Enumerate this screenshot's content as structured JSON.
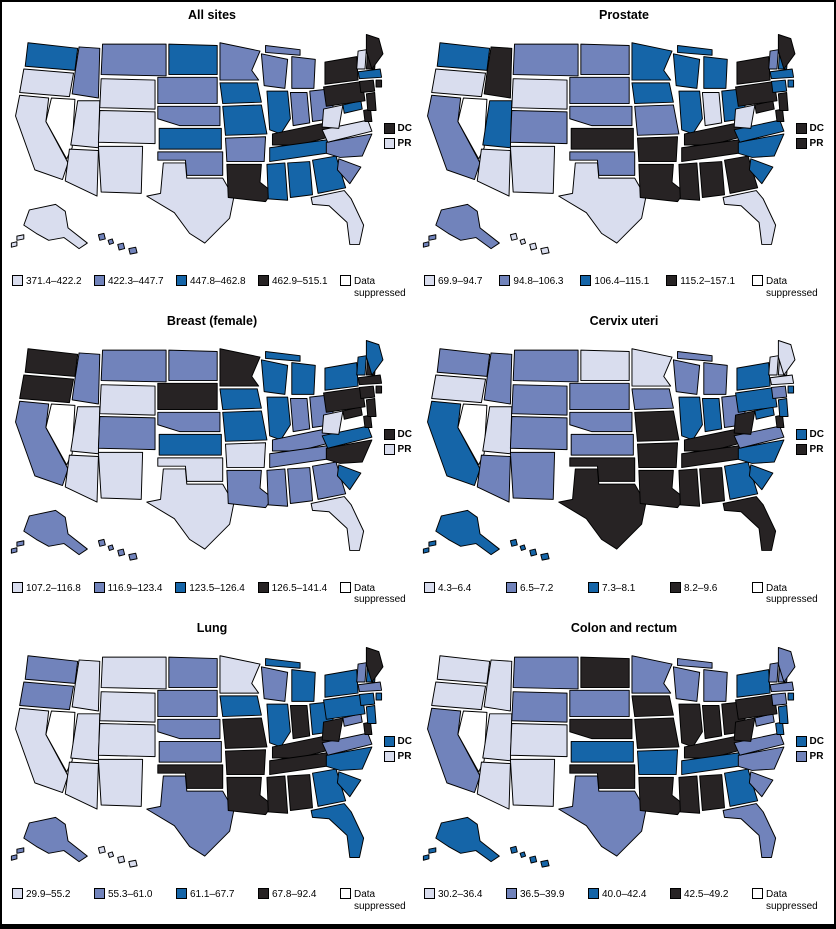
{
  "labels": {
    "dc": "DC",
    "pr": "PR"
  },
  "colors": {
    "1": "#d9ddee",
    "2": "#7183bb",
    "3": "#1565a8",
    "4": "#272324",
    "S": "#ffffff",
    "border": "#000000"
  },
  "chart_data": {
    "type": "choropleth",
    "geography": "US states with DC and PR indicators",
    "category_meaning": [
      "1=lowest rate quartile",
      "2=second quartile",
      "3=third quartile",
      "4=highest quartile",
      "S=data suppressed"
    ],
    "panels": [
      {
        "title": "All sites",
        "bins": [
          "371.4–422.2",
          "422.3–447.7",
          "447.8–462.8",
          "462.9–515.1",
          "Data suppressed"
        ],
        "dc": "4",
        "pr": "1",
        "states": {
          "WA": "3",
          "OR": "1",
          "CA": "1",
          "NV": "S",
          "ID": "2",
          "MT": "2",
          "WY": "1",
          "UT": "1",
          "CO": "1",
          "AZ": "1",
          "NM": "1",
          "AK": "1",
          "HI": "2",
          "ND": "3",
          "SD": "2",
          "NE": "2",
          "KS": "3",
          "OK": "2",
          "TX": "1",
          "MN": "2",
          "IA": "3",
          "MO": "3",
          "AR": "2",
          "LA": "4",
          "WI": "2",
          "IL": "3",
          "MI": "2",
          "IN": "2",
          "OH": "2",
          "KY": "4",
          "TN": "3",
          "MS": "3",
          "AL": "3",
          "GA": "3",
          "FL": "1",
          "SC": "2",
          "NC": "2",
          "VA": "1",
          "WV": "1",
          "MD": "3",
          "DE": "4",
          "PA": "4",
          "NJ": "4",
          "NY": "4",
          "CT": "4",
          "RI": "4",
          "MA": "3",
          "VT": "1",
          "NH": "4",
          "ME": "4"
        }
      },
      {
        "title": "Prostate",
        "bins": [
          "69.9–94.7",
          "94.8–106.3",
          "106.4–115.1",
          "115.2–157.1",
          "Data suppressed"
        ],
        "dc": "4",
        "pr": "4",
        "states": {
          "WA": "3",
          "OR": "1",
          "CA": "2",
          "NV": "S",
          "ID": "4",
          "MT": "2",
          "WY": "1",
          "UT": "3",
          "CO": "2",
          "AZ": "1",
          "NM": "1",
          "AK": "2",
          "HI": "1",
          "ND": "2",
          "SD": "2",
          "NE": "2",
          "KS": "4",
          "OK": "2",
          "TX": "1",
          "MN": "3",
          "IA": "3",
          "MO": "2",
          "AR": "4",
          "LA": "4",
          "WI": "3",
          "IL": "3",
          "MI": "3",
          "IN": "1",
          "OH": "3",
          "KY": "4",
          "TN": "4",
          "MS": "4",
          "AL": "4",
          "GA": "4",
          "FL": "1",
          "SC": "3",
          "NC": "3",
          "VA": "3",
          "WV": "1",
          "MD": "4",
          "DE": "4",
          "PA": "4",
          "NJ": "4",
          "NY": "4",
          "CT": "3",
          "RI": "3",
          "MA": "3",
          "VT": "2",
          "NH": "3",
          "ME": "4"
        }
      },
      {
        "title": "Breast (female)",
        "bins": [
          "107.2–116.8",
          "116.9–123.4",
          "123.5–126.4",
          "126.5–141.4",
          "Data suppressed"
        ],
        "dc": "4",
        "pr": "1",
        "states": {
          "WA": "4",
          "OR": "4",
          "CA": "2",
          "NV": "S",
          "ID": "2",
          "MT": "2",
          "WY": "1",
          "UT": "1",
          "CO": "2",
          "AZ": "1",
          "NM": "1",
          "AK": "2",
          "HI": "2",
          "ND": "2",
          "SD": "4",
          "NE": "2",
          "KS": "3",
          "OK": "1",
          "TX": "1",
          "MN": "4",
          "IA": "3",
          "MO": "3",
          "AR": "1",
          "LA": "2",
          "WI": "3",
          "IL": "3",
          "MI": "3",
          "IN": "2",
          "OH": "2",
          "KY": "2",
          "TN": "2",
          "MS": "2",
          "AL": "2",
          "GA": "2",
          "FL": "1",
          "SC": "3",
          "NC": "4",
          "VA": "3",
          "WV": "1",
          "MD": "4",
          "DE": "4",
          "PA": "4",
          "NJ": "4",
          "NY": "3",
          "CT": "4",
          "RI": "4",
          "MA": "4",
          "VT": "3",
          "NH": "4",
          "ME": "3"
        }
      },
      {
        "title": "Cervix uteri",
        "bins": [
          "4.3–6.4",
          "6.5–7.2",
          "7.3–8.1",
          "8.2–9.6",
          "Data suppressed"
        ],
        "dc": "3",
        "pr": "4",
        "states": {
          "WA": "2",
          "OR": "1",
          "CA": "3",
          "NV": "S",
          "ID": "2",
          "MT": "2",
          "WY": "2",
          "UT": "1",
          "CO": "2",
          "AZ": "2",
          "NM": "2",
          "AK": "3",
          "HI": "3",
          "ND": "1",
          "SD": "2",
          "NE": "2",
          "KS": "2",
          "OK": "4",
          "TX": "4",
          "MN": "1",
          "IA": "2",
          "MO": "4",
          "AR": "4",
          "LA": "4",
          "WI": "2",
          "IL": "3",
          "MI": "2",
          "IN": "3",
          "OH": "2",
          "KY": "4",
          "TN": "4",
          "MS": "4",
          "AL": "4",
          "GA": "3",
          "FL": "4",
          "SC": "3",
          "NC": "3",
          "VA": "2",
          "WV": "4",
          "MD": "3",
          "DE": "4",
          "PA": "3",
          "NJ": "3",
          "NY": "3",
          "CT": "2",
          "RI": "3",
          "MA": "1",
          "VT": "1",
          "NH": "1",
          "ME": "1"
        }
      },
      {
        "title": "Lung",
        "bins": [
          "29.9–55.2",
          "55.3–61.0",
          "61.1–67.7",
          "67.8–92.4",
          "Data suppressed"
        ],
        "dc": "3",
        "pr": "1",
        "states": {
          "WA": "2",
          "OR": "2",
          "CA": "1",
          "NV": "S",
          "ID": "1",
          "MT": "1",
          "WY": "1",
          "UT": "1",
          "CO": "1",
          "AZ": "1",
          "NM": "1",
          "AK": "2",
          "HI": "1",
          "ND": "2",
          "SD": "2",
          "NE": "2",
          "KS": "2",
          "OK": "4",
          "TX": "2",
          "MN": "1",
          "IA": "3",
          "MO": "4",
          "AR": "4",
          "LA": "4",
          "WI": "2",
          "IL": "3",
          "MI": "3",
          "IN": "4",
          "OH": "3",
          "KY": "4",
          "TN": "4",
          "MS": "4",
          "AL": "4",
          "GA": "3",
          "FL": "3",
          "SC": "3",
          "NC": "3",
          "VA": "2",
          "WV": "4",
          "MD": "2",
          "DE": "4",
          "PA": "3",
          "NJ": "3",
          "NY": "3",
          "CT": "3",
          "RI": "3",
          "MA": "2",
          "VT": "2",
          "NH": "3",
          "ME": "4"
        }
      },
      {
        "title": "Colon and rectum",
        "bins": [
          "30.2–36.4",
          "36.5–39.9",
          "40.0–42.4",
          "42.5–49.2",
          "Data suppressed"
        ],
        "dc": "3",
        "pr": "2",
        "states": {
          "WA": "1",
          "OR": "1",
          "CA": "2",
          "NV": "S",
          "ID": "1",
          "MT": "2",
          "WY": "2",
          "UT": "1",
          "CO": "1",
          "AZ": "1",
          "NM": "1",
          "AK": "3",
          "HI": "3",
          "ND": "4",
          "SD": "2",
          "NE": "4",
          "KS": "3",
          "OK": "4",
          "TX": "2",
          "MN": "2",
          "IA": "4",
          "MO": "4",
          "AR": "3",
          "LA": "4",
          "WI": "2",
          "IL": "4",
          "MI": "2",
          "IN": "4",
          "OH": "4",
          "KY": "4",
          "TN": "3",
          "MS": "4",
          "AL": "4",
          "GA": "3",
          "FL": "2",
          "SC": "2",
          "NC": "2",
          "VA": "2",
          "WV": "4",
          "MD": "2",
          "DE": "3",
          "PA": "4",
          "NJ": "3",
          "NY": "3",
          "CT": "2",
          "RI": "3",
          "MA": "2",
          "VT": "2",
          "NH": "2",
          "ME": "2"
        }
      }
    ]
  }
}
